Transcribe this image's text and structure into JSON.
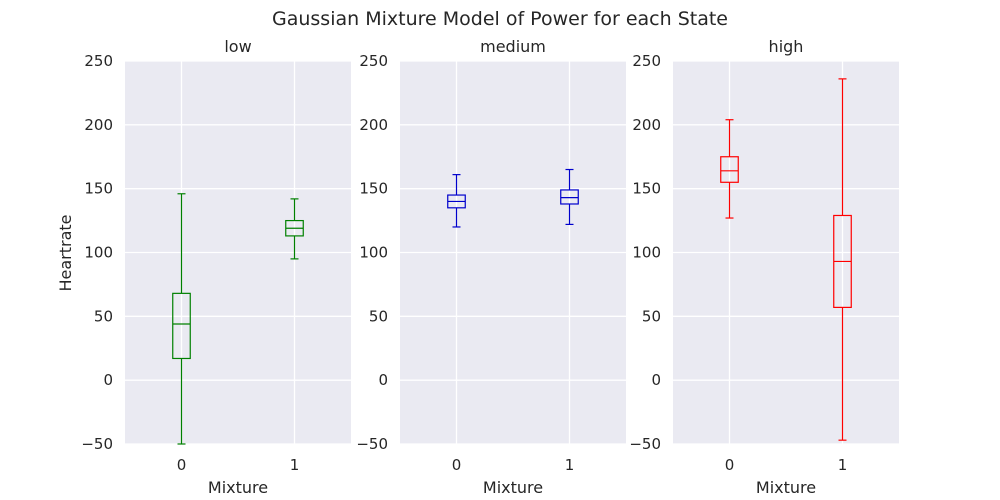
{
  "chart_data": {
    "type": "box",
    "title": "Gaussian Mixture Model of Power for each State",
    "ylabel": "Heartrate",
    "ylim": [
      -50,
      250
    ],
    "yticks": [
      -50,
      0,
      50,
      100,
      150,
      200,
      250
    ],
    "grid": true,
    "panels": [
      {
        "title": "low",
        "xlabel": "Mixture",
        "color": "#008000",
        "categories": [
          "0",
          "1"
        ],
        "boxes": [
          {
            "whisker_low": -50,
            "q1": 17,
            "median": 44,
            "q3": 68,
            "whisker_high": 146
          },
          {
            "whisker_low": 95,
            "q1": 113,
            "median": 119,
            "q3": 125,
            "whisker_high": 142
          }
        ]
      },
      {
        "title": "medium",
        "xlabel": "Mixture",
        "color": "#0000cc",
        "categories": [
          "0",
          "1"
        ],
        "boxes": [
          {
            "whisker_low": 120,
            "q1": 135,
            "median": 140,
            "q3": 145,
            "whisker_high": 161
          },
          {
            "whisker_low": 122,
            "q1": 138,
            "median": 143,
            "q3": 149,
            "whisker_high": 165
          }
        ]
      },
      {
        "title": "high",
        "xlabel": "Mixture",
        "color": "#ff0000",
        "categories": [
          "0",
          "1"
        ],
        "boxes": [
          {
            "whisker_low": 127,
            "q1": 155,
            "median": 164,
            "q3": 175,
            "whisker_high": 204
          },
          {
            "whisker_low": -47,
            "q1": 57,
            "median": 93,
            "q3": 129,
            "whisker_high": 236
          }
        ]
      }
    ]
  }
}
